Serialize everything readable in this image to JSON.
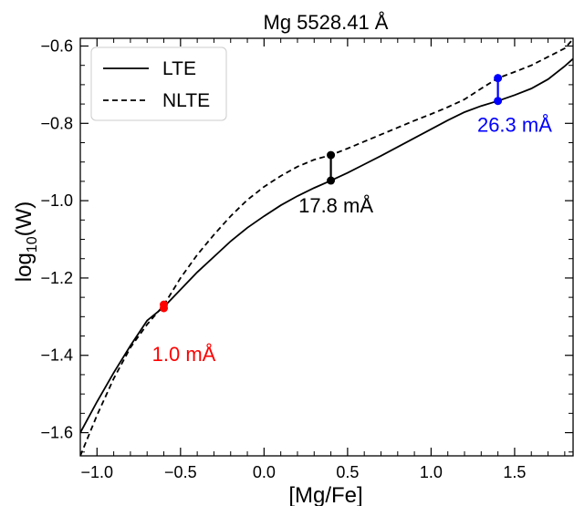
{
  "chart_data": {
    "type": "line",
    "title": "Mg 5528.41 Å",
    "xlabel": "[Mg/Fe]",
    "ylabel_base": "log",
    "ylabel_sub": "10",
    "ylabel_arg": "(W)",
    "xlim": [
      -1.1,
      1.85
    ],
    "ylim": [
      -1.66,
      -0.58
    ],
    "xticks": [
      -1.0,
      -0.5,
      0.0,
      0.5,
      1.0,
      1.5
    ],
    "xtick_labels": [
      "−1.0",
      "−0.5",
      "0.0",
      "0.5",
      "1.0",
      "1.5"
    ],
    "yticks": [
      -0.6,
      -0.8,
      -1.0,
      -1.2,
      -1.4,
      -1.6
    ],
    "ytick_labels": [
      "−0.6",
      "−0.8",
      "−1.0",
      "−1.2",
      "−1.4",
      "−1.6"
    ],
    "grid": false,
    "legend_position": "top-left",
    "series": [
      {
        "name": "LTE",
        "style": "solid",
        "color": "#000000",
        "x": [
          -1.1,
          -1.0,
          -0.9,
          -0.8,
          -0.7,
          -0.6,
          -0.5,
          -0.4,
          -0.3,
          -0.2,
          -0.1,
          0.0,
          0.1,
          0.2,
          0.3,
          0.4,
          0.5,
          0.6,
          0.7,
          0.8,
          0.9,
          1.0,
          1.1,
          1.2,
          1.3,
          1.4,
          1.5,
          1.6,
          1.7,
          1.8,
          1.85
        ],
        "y": [
          -1.6,
          -1.52,
          -1.445,
          -1.375,
          -1.31,
          -1.275,
          -1.23,
          -1.185,
          -1.145,
          -1.105,
          -1.07,
          -1.04,
          -1.012,
          -0.988,
          -0.967,
          -0.948,
          -0.928,
          -0.906,
          -0.884,
          -0.861,
          -0.838,
          -0.815,
          -0.792,
          -0.771,
          -0.755,
          -0.742,
          -0.727,
          -0.71,
          -0.686,
          -0.652,
          -0.633
        ]
      },
      {
        "name": "NLTE",
        "style": "dashed",
        "color": "#000000",
        "x": [
          -1.1,
          -1.0,
          -0.9,
          -0.8,
          -0.7,
          -0.6,
          -0.5,
          -0.4,
          -0.3,
          -0.2,
          -0.1,
          0.0,
          0.1,
          0.2,
          0.3,
          0.4,
          0.5,
          0.6,
          0.7,
          0.8,
          0.9,
          1.0,
          1.1,
          1.2,
          1.3,
          1.4,
          1.5,
          1.6,
          1.7,
          1.8,
          1.85
        ],
        "y": [
          -1.66,
          -1.555,
          -1.46,
          -1.38,
          -1.32,
          -1.27,
          -1.2,
          -1.14,
          -1.088,
          -1.04,
          -0.998,
          -0.964,
          -0.936,
          -0.912,
          -0.894,
          -0.882,
          -0.865,
          -0.847,
          -0.829,
          -0.811,
          -0.793,
          -0.776,
          -0.758,
          -0.738,
          -0.71,
          -0.683,
          -0.667,
          -0.65,
          -0.628,
          -0.606,
          -0.582
        ]
      }
    ],
    "markers": [
      {
        "x": -0.6,
        "y_lte": -1.278,
        "y_nlte": -1.269,
        "color": "#ff0000",
        "label": "1.0 mÅ",
        "label_x": -0.48,
        "label_y": -1.415
      },
      {
        "x": 0.4,
        "y_lte": -0.948,
        "y_nlte": -0.882,
        "color": "#000000",
        "label": "17.8 mÅ",
        "label_x": 0.43,
        "label_y": -1.03
      },
      {
        "x": 1.4,
        "y_lte": -0.742,
        "y_nlte": -0.683,
        "color": "#0000ff",
        "label": "26.3 mÅ",
        "label_x": 1.5,
        "label_y": -0.822
      }
    ],
    "legend": [
      {
        "label": "LTE",
        "style": "solid"
      },
      {
        "label": "NLTE",
        "style": "dashed"
      }
    ]
  }
}
